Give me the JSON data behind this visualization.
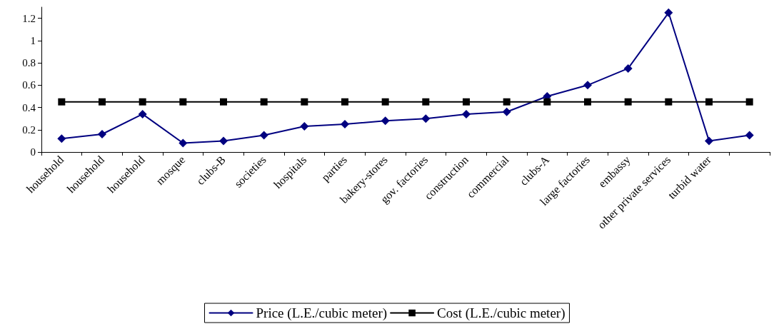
{
  "chart_data": {
    "type": "line",
    "categories": [
      "household",
      "household",
      "household",
      "mosque",
      "clubs-B",
      "societies",
      "hospitals",
      "parties",
      "bakery-stores",
      "gov. factories",
      "construction",
      "commercial",
      "clubs-A",
      "large factories",
      "embassy",
      "other private services",
      "turbid water",
      null
    ],
    "series": [
      {
        "name": "Price (L.E./cubic meter)",
        "color": "#000080",
        "marker": "diamond",
        "values": [
          0.12,
          0.16,
          0.34,
          0.08,
          0.1,
          0.15,
          0.23,
          0.25,
          0.28,
          0.3,
          0.34,
          0.36,
          0.5,
          0.6,
          0.75,
          1.25,
          0.1,
          0.15
        ]
      },
      {
        "name": "Cost (L.E./cubic meter)",
        "color": "#000000",
        "marker": "square",
        "values": [
          0.45,
          0.45,
          0.45,
          0.45,
          0.45,
          0.45,
          0.45,
          0.45,
          0.45,
          0.45,
          0.45,
          0.45,
          0.45,
          0.45,
          0.45,
          0.45,
          0.45,
          0.45
        ]
      }
    ],
    "ylim": [
      0,
      1.3
    ],
    "yticks": [
      0,
      0.2,
      0.4,
      0.6,
      0.8,
      1,
      1.2
    ],
    "grid": false,
    "legend": "bottom",
    "line_style": "solid"
  }
}
